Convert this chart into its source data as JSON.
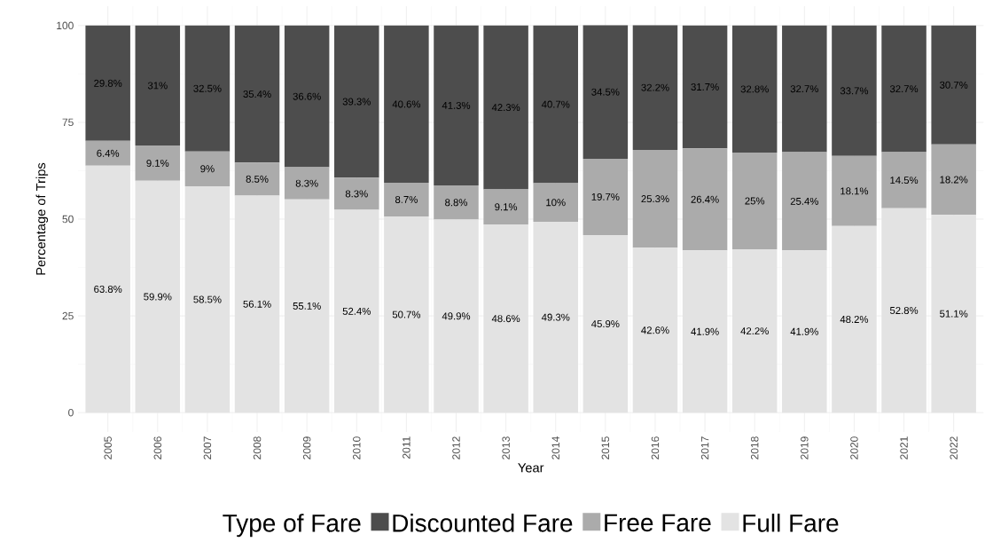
{
  "chart_data": {
    "type": "bar",
    "stacked": true,
    "xlabel": "Year",
    "ylabel": "Percentage of Trips",
    "legend_title": "Type of Fare",
    "legend": "bottom",
    "grid": true,
    "categories": [
      "2005",
      "2006",
      "2007",
      "2008",
      "2009",
      "2010",
      "2011",
      "2012",
      "2013",
      "2014",
      "2015",
      "2016",
      "2017",
      "2018",
      "2019",
      "2020",
      "2021",
      "2022"
    ],
    "ylim": [
      -5,
      105
    ],
    "yticks": [
      0,
      25,
      50,
      75,
      100
    ],
    "series": [
      {
        "name": "Full Fare",
        "color": "#e3e3e3",
        "values": [
          63.8,
          59.9,
          58.5,
          56.1,
          55.1,
          52.4,
          50.7,
          49.9,
          48.6,
          49.3,
          45.9,
          42.6,
          41.9,
          42.2,
          41.9,
          48.2,
          52.8,
          51.1
        ],
        "value_labels": [
          "63.8%",
          "59.9%",
          "58.5%",
          "56.1%",
          "55.1%",
          "52.4%",
          "50.7%",
          "49.9%",
          "48.6%",
          "49.3%",
          "45.9%",
          "42.6%",
          "41.9%",
          "42.2%",
          "41.9%",
          "48.2%",
          "52.8%",
          "51.1%"
        ]
      },
      {
        "name": "Free Fare",
        "color": "#ababab",
        "values": [
          6.4,
          9.1,
          9,
          8.5,
          8.3,
          8.3,
          8.7,
          8.8,
          9.1,
          10,
          19.7,
          25.3,
          26.4,
          25,
          25.4,
          18.1,
          14.5,
          18.2
        ],
        "value_labels": [
          "6.4%",
          "9.1%",
          "9%",
          "8.5%",
          "8.3%",
          "8.3%",
          "8.7%",
          "8.8%",
          "9.1%",
          "10%",
          "19.7%",
          "25.3%",
          "26.4%",
          "25%",
          "25.4%",
          "18.1%",
          "14.5%",
          "18.2%"
        ]
      },
      {
        "name": "Discounted Fare",
        "color": "#4d4d4d",
        "values": [
          29.8,
          31,
          32.5,
          35.4,
          36.6,
          39.3,
          40.6,
          41.3,
          42.3,
          40.7,
          34.5,
          32.2,
          31.7,
          32.8,
          32.7,
          33.7,
          32.7,
          30.7
        ],
        "value_labels": [
          "29.8%",
          "31%",
          "32.5%",
          "35.4%",
          "36.6%",
          "39.3%",
          "40.6%",
          "41.3%",
          "42.3%",
          "40.7%",
          "34.5%",
          "32.2%",
          "31.7%",
          "32.8%",
          "32.7%",
          "33.7%",
          "32.7%",
          "30.7%"
        ]
      }
    ]
  }
}
